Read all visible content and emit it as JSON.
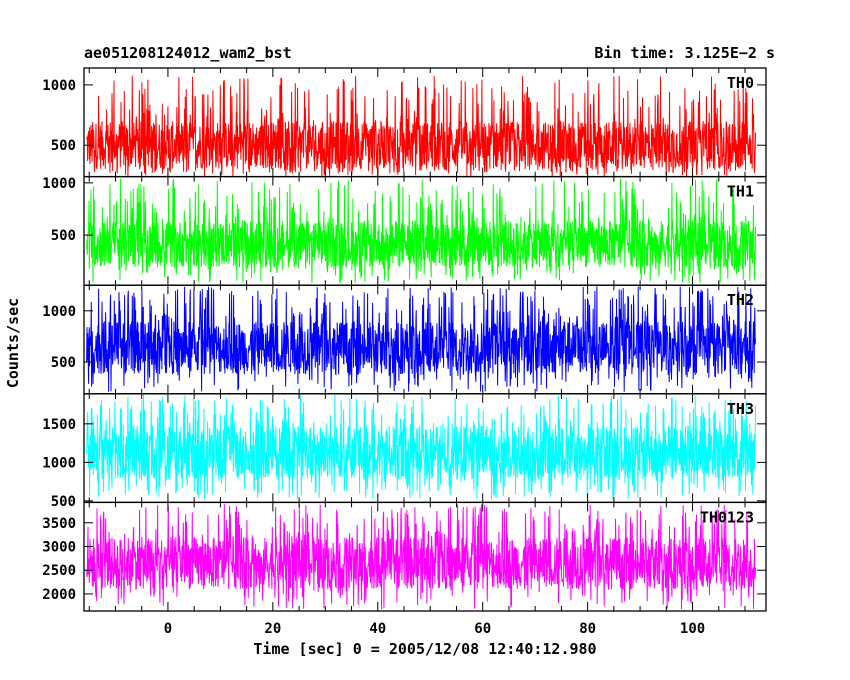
{
  "chart_data": {
    "type": "line",
    "title_left": "ae051208124012_wam2_bst",
    "title_right": "Bin time: 3.125E−2 s",
    "xlabel": "Time [sec] 0 = 2005/12/08 12:40:12.980",
    "ylabel": "Counts/sec",
    "xlim": [
      -16,
      114
    ],
    "xticks": [
      0,
      20,
      40,
      60,
      80,
      100
    ],
    "x_range_data": [
      -15.5,
      112
    ],
    "panels": [
      {
        "name": "TH0",
        "color": "#ff0000",
        "ylim": [
          240,
          1140
        ],
        "yticks": [
          500,
          1000
        ],
        "band": [
          300,
          700
        ],
        "peak": 1080,
        "trough": 240
      },
      {
        "name": "TH1",
        "color": "#00ff00",
        "ylim": [
          20,
          1060
        ],
        "yticks": [
          500,
          1000
        ],
        "band": [
          190,
          640
        ],
        "peak": 1040,
        "trough": 40
      },
      {
        "name": "TH2",
        "color": "#0000ff",
        "ylim": [
          190,
          1250
        ],
        "yticks": [
          500,
          1000
        ],
        "band": [
          380,
          900
        ],
        "peak": 1240,
        "trough": 210
      },
      {
        "name": "TH3",
        "color": "#00ffff",
        "ylim": [
          480,
          1890
        ],
        "yticks": [
          500,
          1000,
          1500
        ],
        "band": [
          780,
          1480
        ],
        "peak": 1880,
        "trough": 520
      },
      {
        "name": "TH0123",
        "color": "#ff00ff",
        "ylim": [
          1640,
          3930
        ],
        "yticks": [
          2000,
          2500,
          3000,
          3500
        ],
        "band": [
          2100,
          3200
        ],
        "peak": 3900,
        "trough": 1680
      }
    ]
  }
}
